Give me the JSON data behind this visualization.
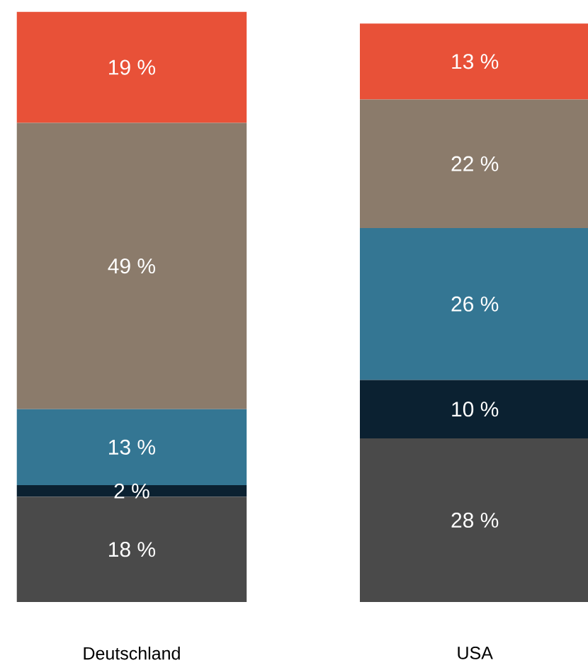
{
  "chart_data": {
    "type": "bar",
    "stacked": true,
    "categories": [
      "Deutschland",
      "USA"
    ],
    "series": [
      {
        "color": "#4a4a4a",
        "values": [
          18,
          28
        ],
        "value_labels": [
          "18 %",
          "28 %"
        ]
      },
      {
        "color": "#0b2131",
        "values": [
          2,
          10
        ],
        "value_labels": [
          "2 %",
          "10 %"
        ]
      },
      {
        "color": "#347693",
        "values": [
          13,
          26
        ],
        "value_labels": [
          "13 %",
          "26 %"
        ]
      },
      {
        "color": "#8b7b6b",
        "values": [
          49,
          22
        ],
        "value_labels": [
          "49 %",
          "22 %"
        ]
      },
      {
        "color": "#e85138",
        "values": [
          19,
          13
        ],
        "value_labels": [
          "19 %",
          "13 %"
        ]
      }
    ]
  }
}
